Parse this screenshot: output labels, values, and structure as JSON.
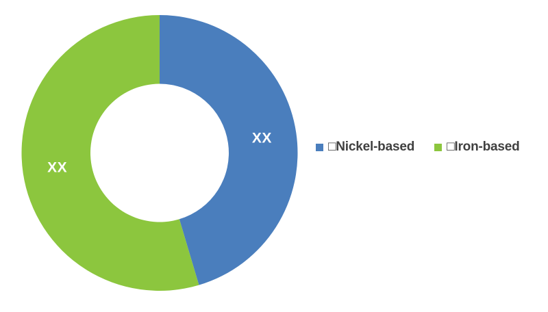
{
  "chart_data": {
    "type": "pie",
    "subtype": "donut",
    "title": "",
    "background_color": "#FFFFFF",
    "direction": "clockwise",
    "start_angle_deg": 0,
    "inner_radius_ratio": 0.5,
    "segments": [
      {
        "name": "Nickel-based",
        "data_label": "XX",
        "value_percent_est": 45.4,
        "color": "#4A7EBD",
        "label_color": "#FFFFFF"
      },
      {
        "name": "Iron-based",
        "data_label": "XX",
        "value_percent_est": 54.6,
        "color": "#8CC63E",
        "label_color": "#FFFFFF"
      }
    ],
    "legend": {
      "position": "right-middle",
      "text_color": "#404040",
      "entries": [
        {
          "label": "□Nickel-based",
          "swatch_color": "#4A7EBD"
        },
        {
          "label": "□Iron-based",
          "swatch_color": "#8CC63E"
        }
      ]
    }
  }
}
